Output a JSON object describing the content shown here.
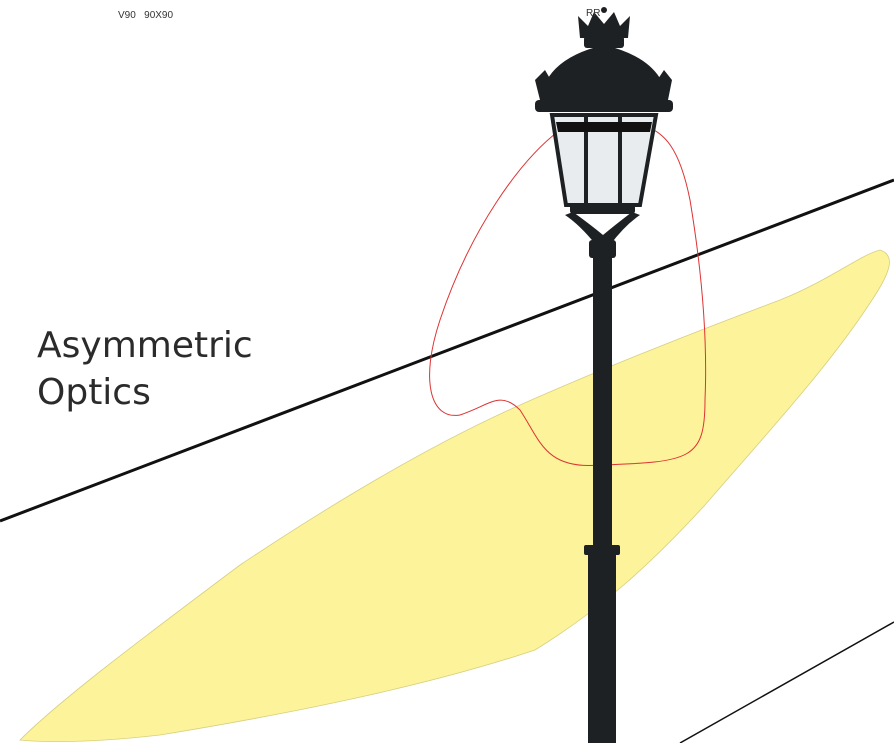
{
  "header": {
    "model": "V90   90X90",
    "code": "RR"
  },
  "caption": {
    "line1": "Asymmetric",
    "line2": "Optics"
  }
}
